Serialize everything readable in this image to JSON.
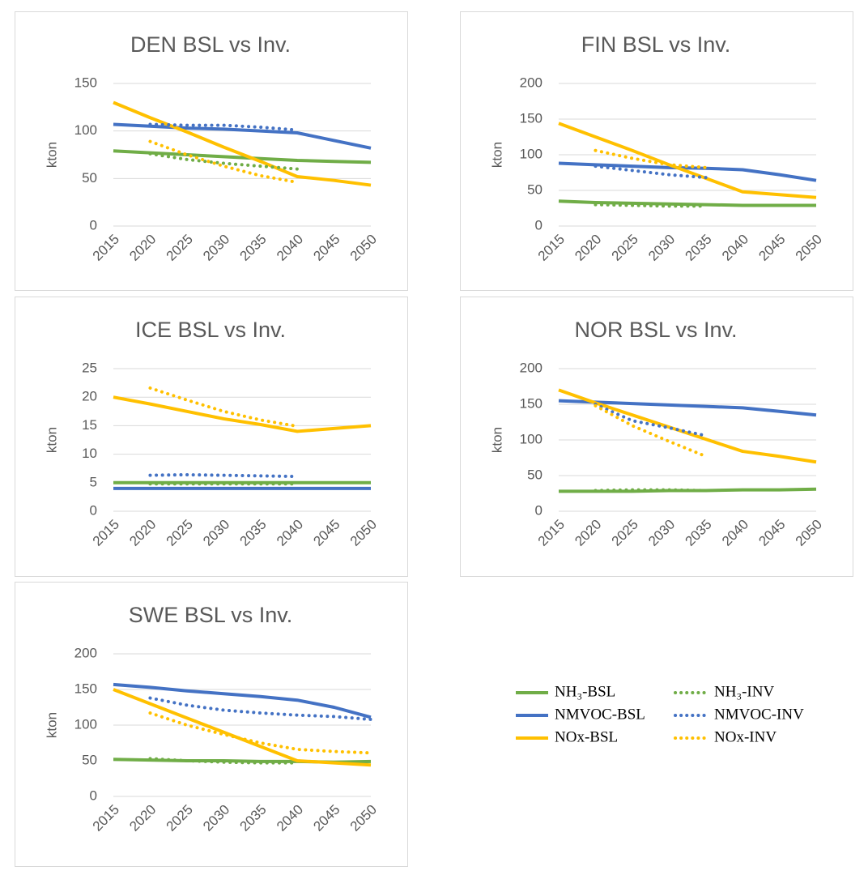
{
  "chart_data": [
    {
      "type": "line",
      "title": "DEN BSL vs Inv.",
      "y_label": "kton",
      "categories": [
        "2015",
        "2020",
        "2025",
        "2030",
        "2035",
        "2040",
        "2045",
        "2050"
      ],
      "ylim": [
        0,
        150
      ],
      "yticks": [
        0,
        50,
        100,
        150
      ],
      "grid": true,
      "series": [
        {
          "name": "NH₃-BSL",
          "color": "#70ad47",
          "style": "solid",
          "values": [
            79,
            77,
            75,
            73,
            71,
            69,
            68,
            67
          ]
        },
        {
          "name": "NMVOC-BSL",
          "color": "#4472c4",
          "style": "solid",
          "values": [
            107,
            105,
            103,
            102,
            100,
            98,
            90,
            82
          ]
        },
        {
          "name": "NOx-BSL",
          "color": "#ffc000",
          "style": "solid",
          "values": [
            130,
            114,
            99,
            83,
            68,
            52,
            48,
            43
          ]
        },
        {
          "name": "NH₃-INV",
          "color": "#70ad47",
          "style": "dotted",
          "values": [
            null,
            76,
            70,
            66,
            63,
            60,
            null,
            null
          ]
        },
        {
          "name": "NMVOC-INV",
          "color": "#4472c4",
          "style": "dotted",
          "values": [
            null,
            107,
            106,
            106,
            104,
            101,
            null,
            null
          ]
        },
        {
          "name": "NOx-INV",
          "color": "#ffc000",
          "style": "dotted",
          "values": [
            null,
            89,
            75,
            63,
            53,
            46,
            null,
            null
          ]
        }
      ]
    },
    {
      "type": "line",
      "title": "FIN BSL vs Inv.",
      "y_label": "kton",
      "categories": [
        "2015",
        "2020",
        "2025",
        "2030",
        "2035",
        "2040",
        "2045",
        "2050"
      ],
      "ylim": [
        0,
        200
      ],
      "yticks": [
        0,
        50,
        100,
        150,
        200
      ],
      "grid": true,
      "series": [
        {
          "name": "NH₃-BSL",
          "color": "#70ad47",
          "style": "solid",
          "values": [
            35,
            33,
            32,
            31,
            30,
            29,
            29,
            29
          ]
        },
        {
          "name": "NMVOC-BSL",
          "color": "#4472c4",
          "style": "solid",
          "values": [
            88,
            86,
            84,
            82,
            81,
            79,
            72,
            64
          ]
        },
        {
          "name": "NOx-BSL",
          "color": "#ffc000",
          "style": "solid",
          "values": [
            144,
            125,
            106,
            86,
            67,
            48,
            44,
            40
          ]
        },
        {
          "name": "NH₃-INV",
          "color": "#70ad47",
          "style": "dotted",
          "values": [
            null,
            30,
            29,
            28,
            28,
            null,
            null,
            null
          ]
        },
        {
          "name": "NMVOC-INV",
          "color": "#4472c4",
          "style": "dotted",
          "values": [
            null,
            84,
            78,
            72,
            68,
            null,
            null,
            null
          ]
        },
        {
          "name": "NOx-INV",
          "color": "#ffc000",
          "style": "dotted",
          "values": [
            null,
            106,
            95,
            86,
            82,
            null,
            null,
            null
          ]
        }
      ]
    },
    {
      "type": "line",
      "title": "ICE BSL vs Inv.",
      "y_label": "kton",
      "categories": [
        "2015",
        "2020",
        "2025",
        "2030",
        "2035",
        "2040",
        "2045",
        "2050"
      ],
      "ylim": [
        0,
        25
      ],
      "yticks": [
        0,
        5,
        10,
        15,
        20,
        25
      ],
      "grid": true,
      "series": [
        {
          "name": "NH₃-BSL",
          "color": "#70ad47",
          "style": "solid",
          "values": [
            5,
            5,
            5,
            5,
            5,
            5,
            5,
            5
          ]
        },
        {
          "name": "NMVOC-BSL",
          "color": "#4472c4",
          "style": "solid",
          "values": [
            4,
            4,
            4,
            4,
            4,
            4,
            4,
            4
          ]
        },
        {
          "name": "NOx-BSL",
          "color": "#ffc000",
          "style": "solid",
          "values": [
            20,
            18.8,
            17.5,
            16.2,
            15.2,
            14,
            14.5,
            15
          ]
        },
        {
          "name": "NH₃-INV",
          "color": "#70ad47",
          "style": "dotted",
          "values": [
            null,
            4.8,
            4.8,
            4.8,
            4.8,
            4.8,
            null,
            null
          ]
        },
        {
          "name": "NMVOC-INV",
          "color": "#4472c4",
          "style": "dotted",
          "values": [
            null,
            6.3,
            6.4,
            6.3,
            6.2,
            6.1,
            null,
            null
          ]
        },
        {
          "name": "NOx-INV",
          "color": "#ffc000",
          "style": "dotted",
          "values": [
            null,
            21.6,
            19.5,
            17.5,
            16,
            14.9,
            null,
            null
          ]
        }
      ]
    },
    {
      "type": "line",
      "title": "NOR BSL vs Inv.",
      "y_label": "kton",
      "categories": [
        "2015",
        "2020",
        "2025",
        "2030",
        "2035",
        "2040",
        "2045",
        "2050"
      ],
      "ylim": [
        0,
        200
      ],
      "yticks": [
        0,
        50,
        100,
        150,
        200
      ],
      "grid": true,
      "series": [
        {
          "name": "NH₃-BSL",
          "color": "#70ad47",
          "style": "solid",
          "values": [
            28,
            28,
            28,
            29,
            29,
            30,
            30,
            31
          ]
        },
        {
          "name": "NMVOC-BSL",
          "color": "#4472c4",
          "style": "solid",
          "values": [
            155,
            153,
            151,
            149,
            147,
            145,
            140,
            135
          ]
        },
        {
          "name": "NOx-BSL",
          "color": "#ffc000",
          "style": "solid",
          "values": [
            170,
            152,
            135,
            118,
            101,
            84,
            77,
            69
          ]
        },
        {
          "name": "NH₃-INV",
          "color": "#70ad47",
          "style": "dotted",
          "values": [
            null,
            29,
            30,
            30,
            29,
            null,
            null,
            null
          ]
        },
        {
          "name": "NMVOC-INV",
          "color": "#4472c4",
          "style": "dotted",
          "values": [
            null,
            150,
            127,
            117,
            106,
            null,
            null,
            null
          ]
        },
        {
          "name": "NOx-INV",
          "color": "#ffc000",
          "style": "dotted",
          "values": [
            null,
            148,
            120,
            98,
            77,
            null,
            null,
            null
          ]
        }
      ]
    },
    {
      "type": "line",
      "title": "SWE BSL vs Inv.",
      "y_label": "kton",
      "categories": [
        "2015",
        "2020",
        "2025",
        "2030",
        "2035",
        "2040",
        "2045",
        "2050"
      ],
      "ylim": [
        0,
        200
      ],
      "yticks": [
        0,
        50,
        100,
        150,
        200
      ],
      "grid": true,
      "series": [
        {
          "name": "NH₃-BSL",
          "color": "#70ad47",
          "style": "solid",
          "values": [
            52,
            51,
            50,
            50,
            49,
            49,
            48,
            49
          ]
        },
        {
          "name": "NMVOC-BSL",
          "color": "#4472c4",
          "style": "solid",
          "values": [
            157,
            153,
            148,
            144,
            140,
            135,
            125,
            111
          ]
        },
        {
          "name": "NOx-BSL",
          "color": "#ffc000",
          "style": "solid",
          "values": [
            150,
            130,
            110,
            90,
            70,
            50,
            47,
            44
          ]
        },
        {
          "name": "NH₃-INV",
          "color": "#70ad47",
          "style": "dotted",
          "values": [
            null,
            53,
            50,
            48,
            47,
            47,
            null,
            null
          ]
        },
        {
          "name": "NMVOC-INV",
          "color": "#4472c4",
          "style": "dotted",
          "values": [
            null,
            138,
            128,
            121,
            117,
            114,
            112,
            108
          ]
        },
        {
          "name": "NOx-INV",
          "color": "#ffc000",
          "style": "dotted",
          "values": [
            null,
            117,
            100,
            87,
            75,
            66,
            63,
            61
          ]
        }
      ]
    }
  ]
}
